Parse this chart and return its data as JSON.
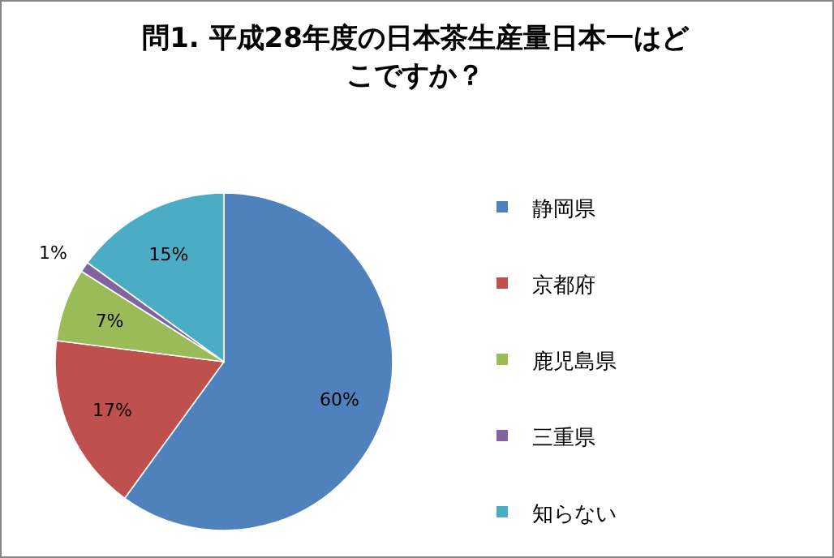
{
  "chart_data": {
    "type": "pie",
    "title": "問1.  平成28年度の日本茶生産量日本一はどこですか？",
    "categories": [
      "静岡県",
      "京都府",
      "鹿児島県",
      "三重県",
      "知らない"
    ],
    "values": [
      60,
      17,
      7,
      1,
      15
    ],
    "value_labels": [
      "60%",
      "17%",
      "7%",
      "1%",
      "15%"
    ],
    "colors": [
      "#4f81bd",
      "#c0504d",
      "#9bbb59",
      "#8064a2",
      "#4bacc6"
    ],
    "legend": "right"
  }
}
